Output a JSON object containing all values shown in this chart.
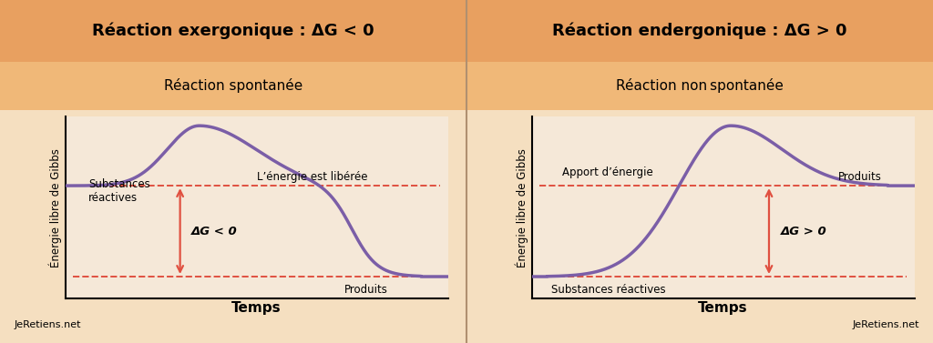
{
  "bg_color": "#f5dfc0",
  "header_bg": "#e8a060",
  "subheader_bg": "#f0b878",
  "plot_bg": "#f5e8d8",
  "divider_color": "#b09070",
  "curve_color": "#7b5ea7",
  "dashed_color": "#e05040",
  "arrow_color": "#e05040",
  "title_left_bold": "Réaction exergonique",
  "title_left_normal": " : ΔG < 0",
  "title_right_bold": "Réaction endergonique",
  "title_right_normal": " : ΔG > 0",
  "subtitle_left": "Réaction spontanée",
  "subtitle_right": "Réaction non spontanée",
  "ylabel": "Énergie libre de Gibbs",
  "xlabel": "Temps",
  "watermark": "JeRetiens.net",
  "left_reactant_label": "Substances\nréactives",
  "left_product_label": "Produits",
  "left_delta_label": "ΔG < 0",
  "left_energy_label": "L’énergie est libérée",
  "right_reactant_label": "Substances réactives",
  "right_product_label": "Produits",
  "right_delta_label": "ΔG > 0",
  "right_energy_label": "Apport d’énergie"
}
